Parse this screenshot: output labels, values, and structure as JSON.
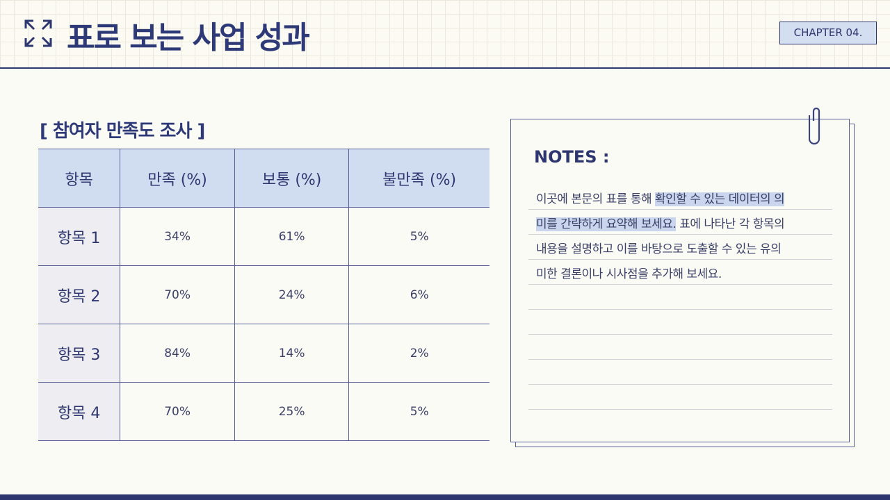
{
  "header": {
    "title": "표로 보는 사업 성과",
    "chapter": "CHAPTER 04.",
    "icon": "expand-arrows-icon"
  },
  "section_title": "[ 참여자 만족도 조사 ]",
  "table": {
    "columns": [
      "항목",
      "만족 (%)",
      "보통 (%)",
      "불만족 (%)"
    ],
    "rows": [
      [
        "항목 1",
        "34%",
        "61%",
        "5%"
      ],
      [
        "항목 2",
        "70%",
        "24%",
        "6%"
      ],
      [
        "항목 3",
        "84%",
        "14%",
        "2%"
      ],
      [
        "항목 4",
        "70%",
        "25%",
        "5%"
      ]
    ]
  },
  "notes": {
    "title": "NOTES :",
    "lines": [
      {
        "plain": "이곳에 본문의 표를 통해 ",
        "selected": "확인할 수 있는 데이터의 의 "
      },
      {
        "selected": "미를 간략하게 요약해 보세요.",
        "plain": " 표에 나타난 각 항목의"
      },
      {
        "plain": "내용을 설명하고 이를 바탕으로 도출할 수 있는 유의"
      },
      {
        "plain": "미한 결론이나 시사점을 추가해 보세요."
      }
    ]
  },
  "colors": {
    "navy": "#2e3670",
    "header_fill": "#d0ddf0",
    "selection": "#c9d6ee"
  }
}
